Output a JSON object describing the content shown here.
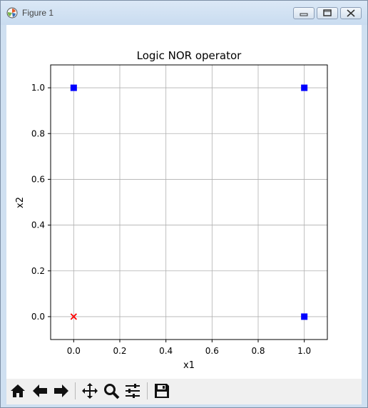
{
  "window": {
    "title": "Figure 1"
  },
  "toolbar": {
    "buttons": [
      "home-icon",
      "back-arrow-icon",
      "forward-arrow-icon",
      "pan-icon",
      "zoom-icon",
      "subplots-configure-icon",
      "save-icon"
    ]
  },
  "chart_data": {
    "type": "scatter",
    "title": "Logic NOR operator",
    "xlabel": "x1",
    "ylabel": "x2",
    "xlim": [
      -0.1,
      1.1
    ],
    "ylim": [
      -0.1,
      1.1
    ],
    "xticks": [
      "0.0",
      "0.2",
      "0.4",
      "0.6",
      "0.8",
      "1.0"
    ],
    "yticks": [
      "0.0",
      "0.2",
      "0.4",
      "0.6",
      "0.8",
      "1.0"
    ],
    "grid": true,
    "series": [
      {
        "marker": "x",
        "color": "#ff0000",
        "points": [
          [
            0,
            0
          ]
        ]
      },
      {
        "marker": "square",
        "color": "#0000ff",
        "points": [
          [
            0,
            1
          ],
          [
            1,
            0
          ],
          [
            1,
            1
          ]
        ]
      }
    ]
  }
}
